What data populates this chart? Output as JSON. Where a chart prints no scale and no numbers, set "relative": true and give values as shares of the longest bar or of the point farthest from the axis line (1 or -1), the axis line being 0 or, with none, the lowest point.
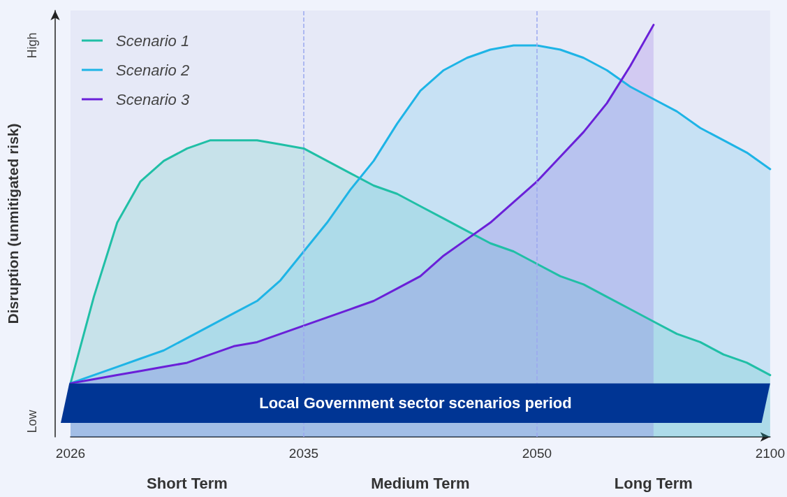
{
  "chart_data": {
    "type": "area",
    "relative": true,
    "ylabel": "Disruption (unmitigated risk)",
    "categories": [
      "2026",
      null,
      null,
      null,
      null,
      null,
      null,
      null,
      null,
      null,
      "2035",
      null,
      null,
      null,
      null,
      null,
      null,
      null,
      null,
      null,
      "2050",
      null,
      null,
      null,
      null,
      null,
      null,
      null,
      null,
      null,
      "2100"
    ],
    "grid": false,
    "legend": "top left",
    "marker": "none",
    "line_style": "solid",
    "series": [
      {
        "name": "Scenario 1",
        "color": "#20bfa6",
        "values": [
          0.13,
          0.34,
          0.52,
          0.62,
          0.67,
          0.7,
          0.72,
          0.72,
          0.72,
          0.71,
          0.7,
          0.67,
          0.64,
          0.61,
          0.59,
          0.56,
          0.53,
          0.5,
          0.47,
          0.45,
          0.42,
          0.39,
          0.37,
          0.34,
          0.31,
          0.28,
          0.25,
          0.23,
          0.2,
          0.18,
          0.15
        ]
      },
      {
        "name": "Scenario 2",
        "color": "#1eb4e6",
        "values": [
          0.13,
          0.15,
          0.17,
          0.19,
          0.21,
          0.24,
          0.27,
          0.3,
          0.33,
          0.38,
          0.45,
          0.52,
          0.6,
          0.67,
          0.76,
          0.84,
          0.89,
          0.92,
          0.94,
          0.95,
          0.95,
          0.94,
          0.92,
          0.89,
          0.85,
          0.82,
          0.79,
          0.75,
          0.72,
          0.69,
          0.65
        ]
      },
      {
        "name": "Scenario 3",
        "color": "#6a20d8",
        "values": [
          0.13,
          0.14,
          0.15,
          0.16,
          0.17,
          0.18,
          0.2,
          0.22,
          0.23,
          0.25,
          0.27,
          0.29,
          0.31,
          0.33,
          0.36,
          0.39,
          0.44,
          0.48,
          0.52,
          0.57,
          0.62,
          0.68,
          0.74,
          0.81,
          0.9,
          1.0,
          null,
          null,
          null,
          null,
          null
        ]
      }
    ],
    "ref_lines": [
      {
        "axis": "x",
        "value": "2035",
        "color": "#9aa8f0",
        "line_style": "dashed"
      },
      {
        "axis": "x",
        "value": "2050",
        "color": "#9aa8f0",
        "line_style": "dashed"
      }
    ],
    "annotations": [
      "Local Government sector scenarios period",
      "Short Term",
      "Medium Term",
      "Long Term",
      "Low",
      "High"
    ]
  }
}
